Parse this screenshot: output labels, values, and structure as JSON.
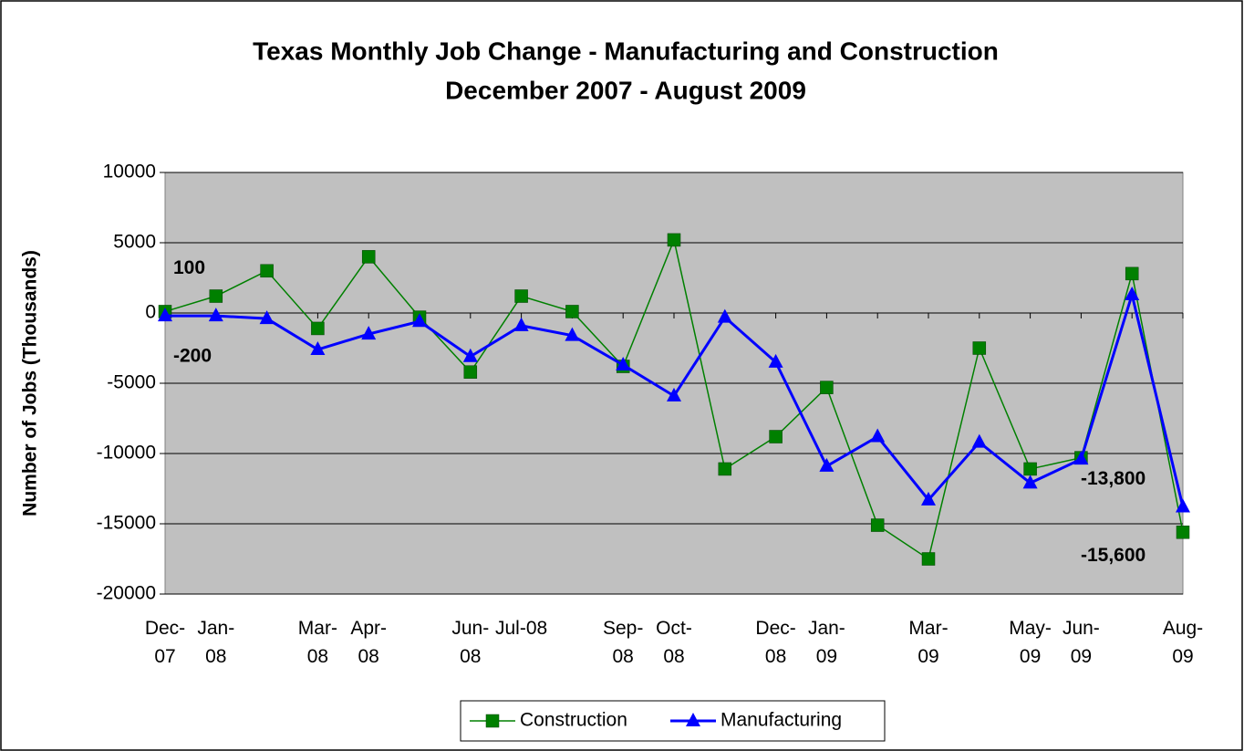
{
  "chart_data": {
    "type": "line",
    "title": "Texas Monthly Job Change - Manufacturing and Construction",
    "subtitle": "December 2007 - August 2009",
    "y_label": "Number of Jobs (Thousands)",
    "categories": [
      "Dec-\n07",
      "Jan-\n08",
      null,
      "Mar-\n08",
      "Apr-\n08",
      null,
      "Jun-\n08",
      "Jul-08",
      null,
      "Sep-\n08",
      "Oct-\n08",
      null,
      "Dec-\n08",
      "Jan-\n09",
      null,
      "Mar-\n09",
      null,
      "May-\n09",
      "Jun-\n09",
      null,
      "Aug-\n09"
    ],
    "series": [
      {
        "name": "Construction",
        "color": "#008000",
        "marker": "square",
        "values": [
          100,
          1200,
          3000,
          -1100,
          4000,
          -300,
          -4200,
          1200,
          100,
          -3800,
          5200,
          -11100,
          -8800,
          -5300,
          -15100,
          -17500,
          -2500,
          -11100,
          -10300,
          2800,
          -15600
        ],
        "value_labels": [
          "100",
          null,
          null,
          null,
          null,
          null,
          null,
          null,
          null,
          null,
          null,
          null,
          null,
          null,
          null,
          null,
          null,
          null,
          null,
          null,
          "-15,600"
        ]
      },
      {
        "name": "Manufacturing",
        "color": "#0000ff",
        "marker": "triangle",
        "values": [
          -200,
          -200,
          -400,
          -2600,
          -1500,
          -600,
          -3100,
          -900,
          -1600,
          -3700,
          -5900,
          -300,
          -3500,
          -10900,
          -8800,
          -13300,
          -9200,
          -12100,
          -10400,
          1300,
          -13800
        ],
        "value_labels": [
          "-200",
          null,
          null,
          null,
          null,
          null,
          null,
          null,
          null,
          null,
          null,
          null,
          null,
          null,
          null,
          null,
          null,
          null,
          null,
          null,
          "-13,800"
        ]
      }
    ],
    "ylim": [
      -20000,
      10000
    ],
    "yticks": [
      -20000,
      -15000,
      -10000,
      -5000,
      0,
      5000,
      10000
    ],
    "grid": true,
    "legend": "bottom"
  }
}
